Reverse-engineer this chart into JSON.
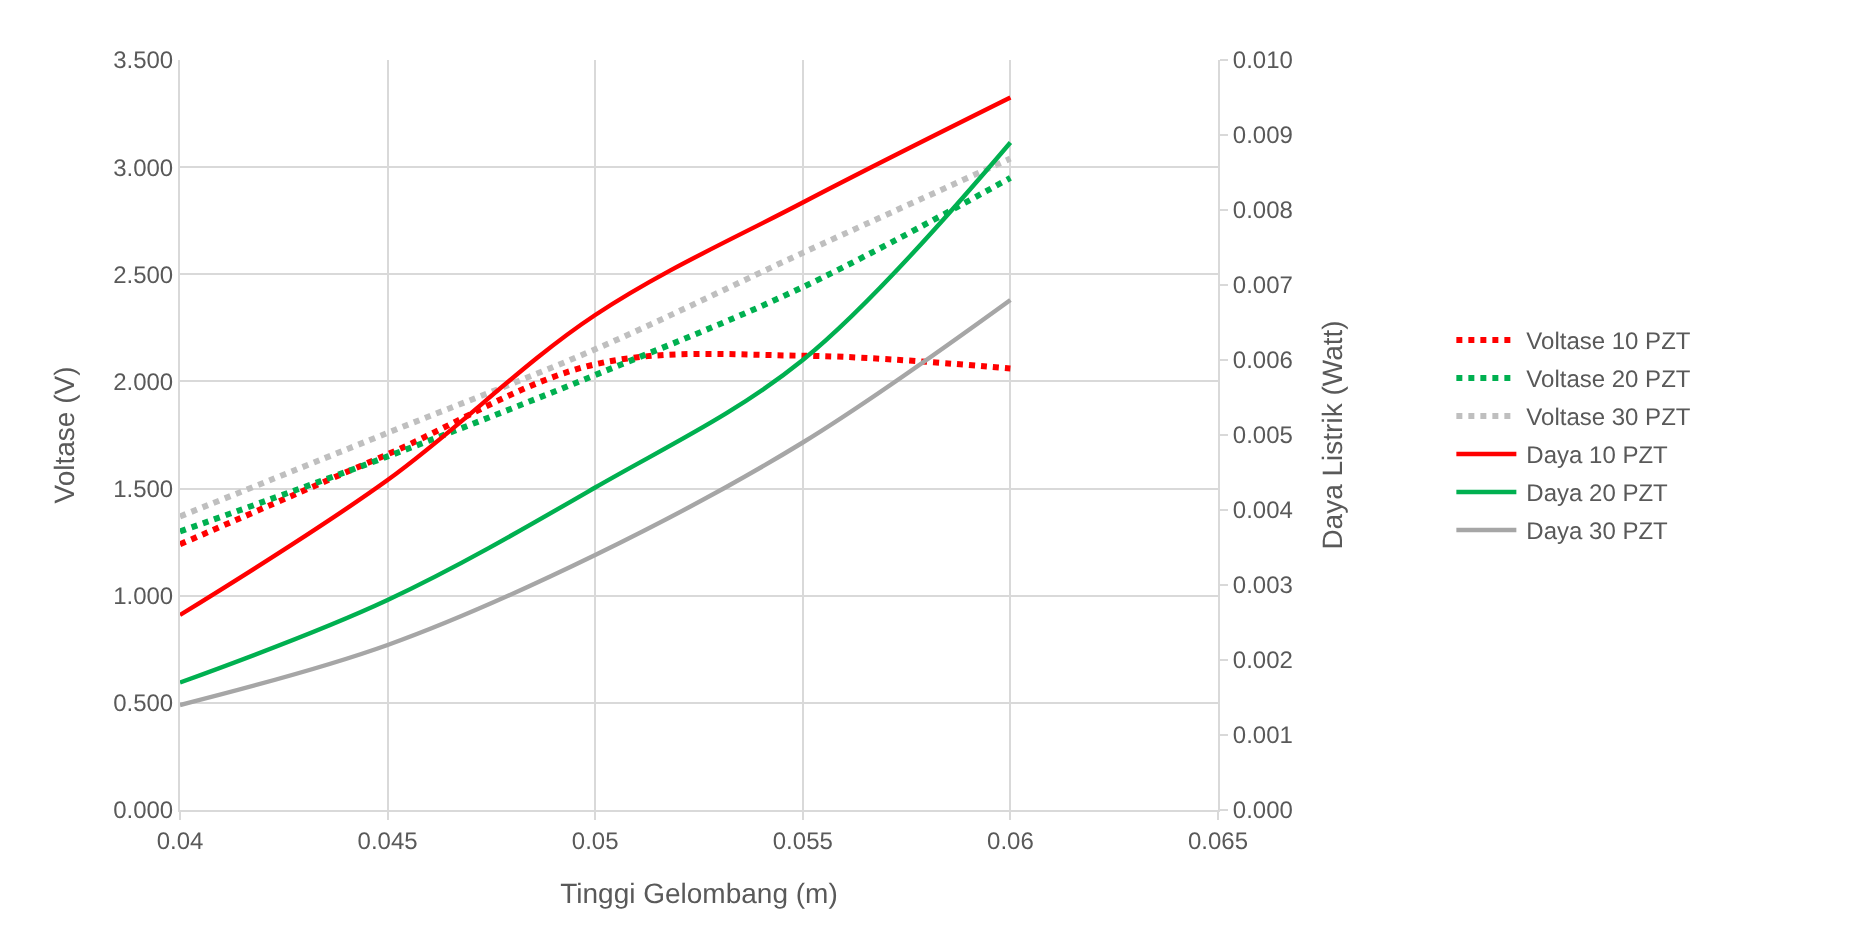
{
  "chart_data": {
    "type": "line",
    "xlabel": "Tinggi Gelombang (m)",
    "ylabel": "Voltase (V)",
    "y2label": "Daya Listrik (Watt)",
    "x": [
      0.04,
      0.045,
      0.05,
      0.055,
      0.06
    ],
    "xlim": [
      0.04,
      0.065
    ],
    "xticks": [
      0.04,
      0.045,
      0.05,
      0.055,
      0.06,
      0.065
    ],
    "ylim": [
      0,
      3.5
    ],
    "yticks": [
      {
        "value": 0,
        "label": "0.000"
      },
      {
        "value": 0.5,
        "label": "0.500"
      },
      {
        "value": 1,
        "label": "1.000"
      },
      {
        "value": 1.5,
        "label": "1.500"
      },
      {
        "value": 2,
        "label": "2.000"
      },
      {
        "value": 2.5,
        "label": "2.500"
      },
      {
        "value": 3,
        "label": "3.000"
      },
      {
        "value": 3.5,
        "label": "3.500"
      }
    ],
    "y2lim": [
      0,
      0.01
    ],
    "y2ticks": [
      {
        "value": 0,
        "label": "0.000"
      },
      {
        "value": 0.001,
        "label": "0.001"
      },
      {
        "value": 0.002,
        "label": "0.002"
      },
      {
        "value": 0.003,
        "label": "0.003"
      },
      {
        "value": 0.004,
        "label": "0.004"
      },
      {
        "value": 0.005,
        "label": "0.005"
      },
      {
        "value": 0.006,
        "label": "0.006"
      },
      {
        "value": 0.007,
        "label": "0.007"
      },
      {
        "value": 0.008,
        "label": "0.008"
      },
      {
        "value": 0.009,
        "label": "0.009"
      },
      {
        "value": 0.01,
        "label": "0.010"
      }
    ],
    "grid": true,
    "legend": "right",
    "marker": "none",
    "series": [
      {
        "name": "Voltase 10 PZT",
        "color": "#ff0000",
        "line_style": "dotted",
        "values": [
          1.24,
          1.66,
          2.08,
          2.12,
          2.06
        ]
      },
      {
        "name": "Voltase 20 PZT",
        "color": "#00b050",
        "line_style": "dotted",
        "values": [
          1.3,
          1.65,
          2.03,
          2.44,
          2.95
        ]
      },
      {
        "name": "Voltase 30 PZT",
        "color": "#bfbfbf",
        "line_style": "dotted",
        "values": [
          1.37,
          1.76,
          2.15,
          2.6,
          3.04
        ]
      },
      {
        "name": "Daya 10 PZT",
        "color": "#ff0000",
        "line_style": "solid",
        "axis": "y2",
        "values": [
          0.0026,
          0.0044,
          0.0066,
          0.0081,
          0.0095
        ]
      },
      {
        "name": "Daya 20 PZT",
        "color": "#00b050",
        "line_style": "solid",
        "axis": "y2",
        "values": [
          0.0017,
          0.0028,
          0.0043,
          0.006,
          0.0089
        ]
      },
      {
        "name": "Daya 30 PZT",
        "color": "#a6a6a6",
        "line_style": "solid",
        "axis": "y2",
        "values": [
          0.0014,
          0.0022,
          0.0034,
          0.0049,
          0.0068
        ]
      }
    ]
  }
}
